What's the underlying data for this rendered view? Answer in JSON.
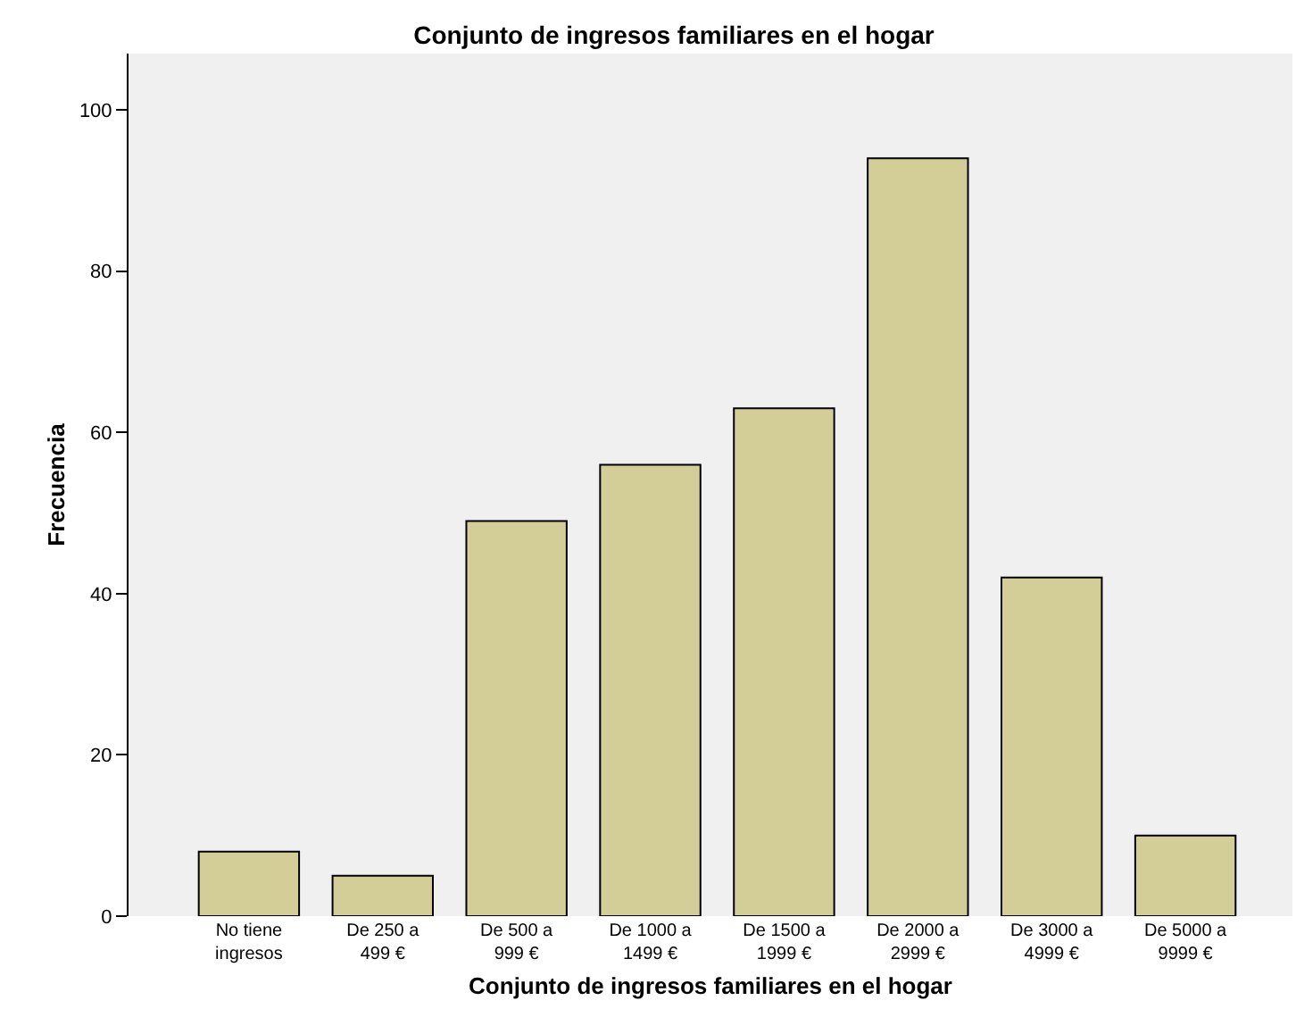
{
  "chart_data": {
    "type": "bar",
    "title": "Conjunto de ingresos familiares en el hogar",
    "xlabel": "Conjunto de ingresos familiares en el hogar",
    "ylabel": "Frecuencia",
    "categories": [
      "No tiene\ningresos",
      "De 250 a\n499 €",
      "De 500 a\n999 €",
      "De 1000 a\n1499 €",
      "De 1500 a\n1999 €",
      "De 2000 a\n2999 €",
      "De 3000 a\n4999 €",
      "De 5000 a\n9999 €"
    ],
    "values": [
      8,
      5,
      49,
      56,
      63,
      94,
      42,
      10
    ],
    "color": "#d3ce97",
    "ylim": [
      0,
      107
    ],
    "yticks": [
      0,
      20,
      40,
      60,
      80,
      100
    ],
    "grid": false,
    "legend": false
  }
}
